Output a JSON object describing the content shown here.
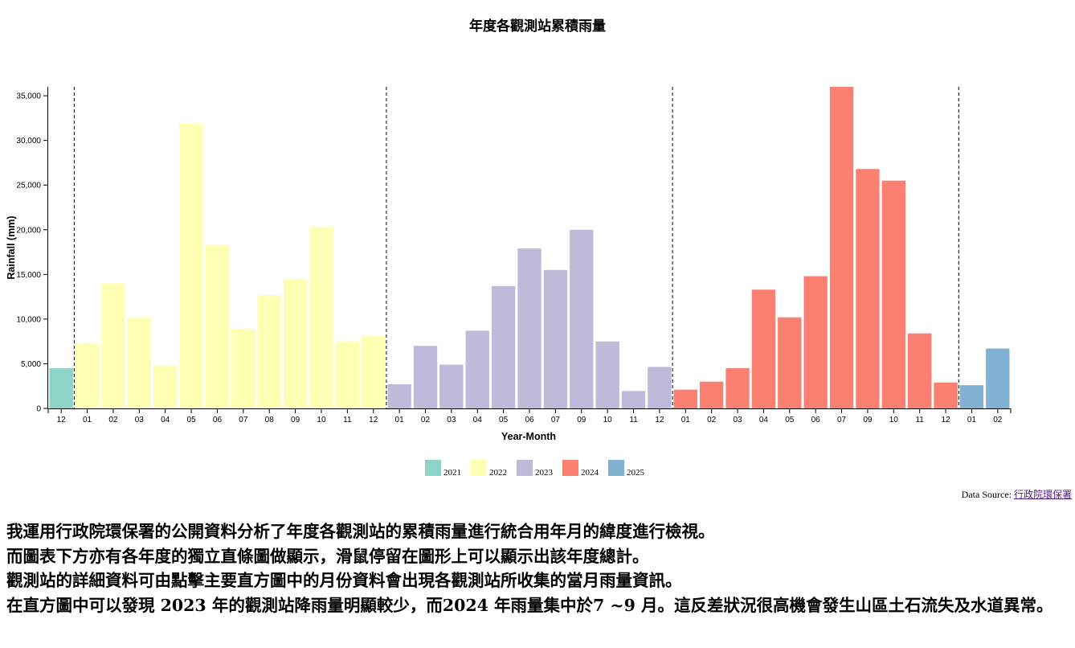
{
  "chart_data": {
    "type": "bar",
    "title": "年度各觀測站累積雨量",
    "xlabel": "Year-Month",
    "ylabel": "Rainfall (mm)",
    "ylim": [
      0,
      36000
    ],
    "yticks": [
      0,
      5000,
      10000,
      15000,
      20000,
      25000,
      30000,
      35000
    ],
    "ytick_labels": [
      "0",
      "5,000",
      "10,000",
      "15,000",
      "20,000",
      "25,000",
      "30,000",
      "35,000"
    ],
    "year_colors": {
      "2021": "#8dd3c7",
      "2022": "#ffffb3",
      "2023": "#bebada",
      "2024": "#fb8072",
      "2025": "#80b1d3"
    },
    "legend": [
      "2021",
      "2022",
      "2023",
      "2024",
      "2025"
    ],
    "legend_position": "bottom-center",
    "year_separators": true,
    "bars": [
      {
        "year": "2021",
        "month": "12",
        "value": 4500
      },
      {
        "year": "2022",
        "month": "01",
        "value": 7300
      },
      {
        "year": "2022",
        "month": "02",
        "value": 14000
      },
      {
        "year": "2022",
        "month": "03",
        "value": 10200
      },
      {
        "year": "2022",
        "month": "04",
        "value": 4800
      },
      {
        "year": "2022",
        "month": "05",
        "value": 31900
      },
      {
        "year": "2022",
        "month": "06",
        "value": 18300
      },
      {
        "year": "2022",
        "month": "07",
        "value": 8900
      },
      {
        "year": "2022",
        "month": "08",
        "value": 12700
      },
      {
        "year": "2022",
        "month": "09",
        "value": 14500
      },
      {
        "year": "2022",
        "month": "10",
        "value": 20300
      },
      {
        "year": "2022",
        "month": "11",
        "value": 7500
      },
      {
        "year": "2022",
        "month": "12",
        "value": 8100
      },
      {
        "year": "2023",
        "month": "01",
        "value": 2700
      },
      {
        "year": "2023",
        "month": "02",
        "value": 7000
      },
      {
        "year": "2023",
        "month": "03",
        "value": 4900
      },
      {
        "year": "2023",
        "month": "04",
        "value": 8700
      },
      {
        "year": "2023",
        "month": "05",
        "value": 13700
      },
      {
        "year": "2023",
        "month": "06",
        "value": 17900
      },
      {
        "year": "2023",
        "month": "07",
        "value": 15500
      },
      {
        "year": "2023",
        "month": "09",
        "value": 20000
      },
      {
        "year": "2023",
        "month": "10",
        "value": 7500
      },
      {
        "year": "2023",
        "month": "11",
        "value": 1950
      },
      {
        "year": "2023",
        "month": "12",
        "value": 4650
      },
      {
        "year": "2024",
        "month": "01",
        "value": 2100
      },
      {
        "year": "2024",
        "month": "02",
        "value": 3000
      },
      {
        "year": "2024",
        "month": "03",
        "value": 4500
      },
      {
        "year": "2024",
        "month": "04",
        "value": 13300
      },
      {
        "year": "2024",
        "month": "05",
        "value": 10200
      },
      {
        "year": "2024",
        "month": "06",
        "value": 14800
      },
      {
        "year": "2024",
        "month": "07",
        "value": 36000
      },
      {
        "year": "2024",
        "month": "09",
        "value": 26800
      },
      {
        "year": "2024",
        "month": "10",
        "value": 25500
      },
      {
        "year": "2024",
        "month": "11",
        "value": 8400
      },
      {
        "year": "2024",
        "month": "12",
        "value": 2900
      },
      {
        "year": "2025",
        "month": "01",
        "value": 2600
      },
      {
        "year": "2025",
        "month": "02",
        "value": 6700
      }
    ]
  },
  "source": {
    "prefix": "Data Source: ",
    "link_text": "行政院環保署"
  },
  "description": [
    "我運用行政院環保署的公開資料分析了年度各觀測站的累積雨量進行統合用年月的緯度進行檢視。",
    "而圖表下方亦有各年度的獨立直條圖做顯示，滑鼠停留在圖形上可以顯示出該年度總計。",
    "觀測站的詳細資料可由點擊主要直方圖中的月份資料會出現各觀測站所收集的當月雨量資訊。",
    "在直方圖中可以發現 2023 年的觀測站降雨量明顯較少，而2024 年雨量集中於7 ~9 月。這反差狀況很高機會發生山區土石流失及水道異常。"
  ]
}
